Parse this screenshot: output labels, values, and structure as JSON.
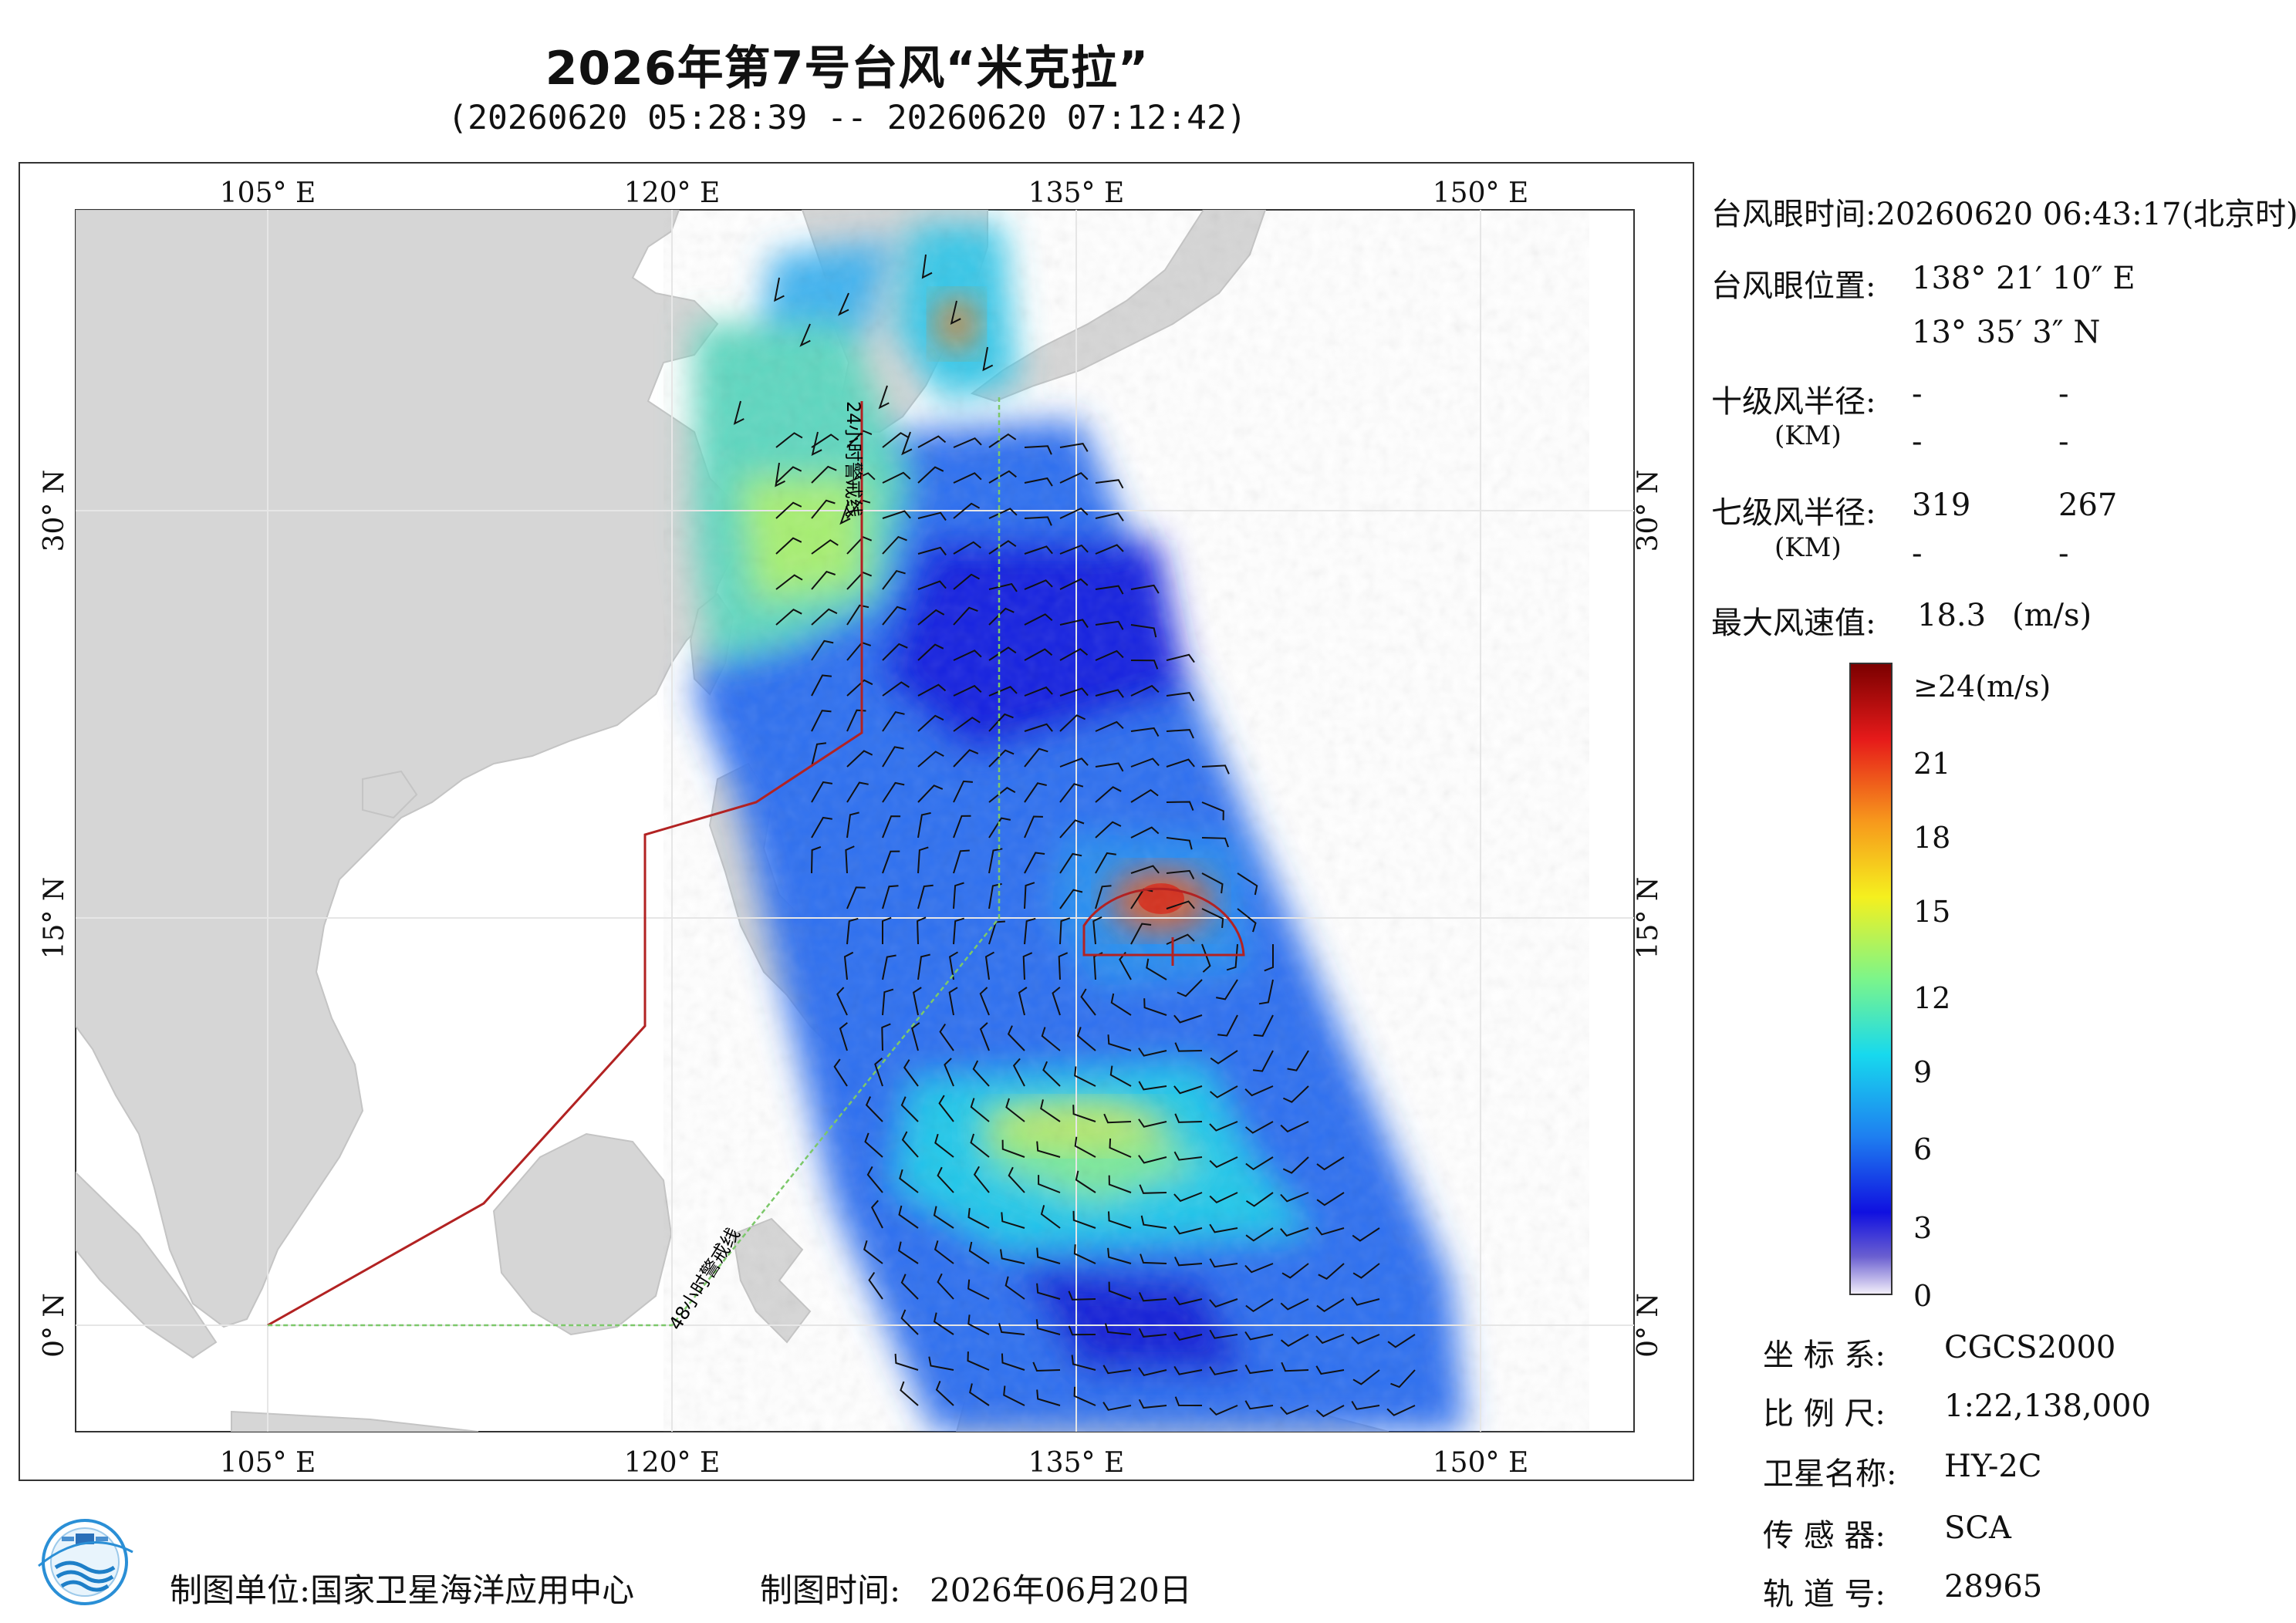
{
  "header": {
    "title": "2026年第7号台风“米克拉”",
    "subtitle": "(20260620 05:28:39 -- 20260620 07:12:42)"
  },
  "map": {
    "top_lon_labels": [
      "105° E",
      "120° E",
      "135° E",
      "150° E"
    ],
    "bottom_lon_labels": [
      "105° E",
      "120° E",
      "135° E",
      "150° E"
    ],
    "left_lat_labels": [
      "30° N",
      "15° N",
      "0° N"
    ],
    "right_lat_labels": [
      "30° N",
      "15° N",
      "0° N"
    ],
    "line_24h_label": "24小时警戒线",
    "line_48h_label": "48小时警戒线",
    "land_color": "#d6d6d6",
    "sea_color": "#ffffff",
    "warning_24h_color": "#b22222",
    "warning_48h_color": "#7cc86a",
    "typhoon_eye": {
      "lon": 138.35,
      "lat": 13.58
    }
  },
  "info": {
    "eye_time_label": "台风眼时间:",
    "eye_time_value": "20260620 06:43:17(北京时)",
    "eye_pos_label": "台风眼位置:",
    "eye_lon": "138° 21′ 10″ E",
    "eye_lat": "13° 35′ 3″ N",
    "r10_label": "十级风半径:",
    "r10_unit": "(KM)",
    "r10_values": [
      "-",
      "-",
      "-",
      "-"
    ],
    "r7_label": "七级风半径:",
    "r7_unit": "(KM)",
    "r7_values": [
      "319",
      "267",
      "-",
      "-"
    ],
    "max_wind_label": "最大风速值:",
    "max_wind_value": "18.3",
    "max_wind_unit": "(m/s)"
  },
  "colorbar": {
    "labels": [
      "≥24(m/s)",
      "21",
      "18",
      "15",
      "12",
      "9",
      "6",
      "3",
      "0"
    ],
    "stops": [
      "#f4f0fa",
      "#6a5fd0",
      "#1010e0",
      "#1e7ff0",
      "#17d9ee",
      "#7cf58a",
      "#f5f01e",
      "#f7981c",
      "#e61a1a",
      "#7a0000"
    ]
  },
  "meta": {
    "crs_label": "坐 标 系:",
    "crs_value": "CGCS2000",
    "scale_label": "比 例 尺:",
    "scale_value": "1:22,138,000",
    "satellite_label": "卫星名称:",
    "satellite_value": "HY-2C",
    "sensor_label": "传 感 器:",
    "sensor_value": "SCA",
    "orbit_label": "轨 道 号:",
    "orbit_value": "28965"
  },
  "footer": {
    "producer_label": "制图单位:",
    "producer_value": "国家卫星海洋应用中心",
    "date_label": "制图时间:",
    "date_value": "2026年06月20日"
  }
}
